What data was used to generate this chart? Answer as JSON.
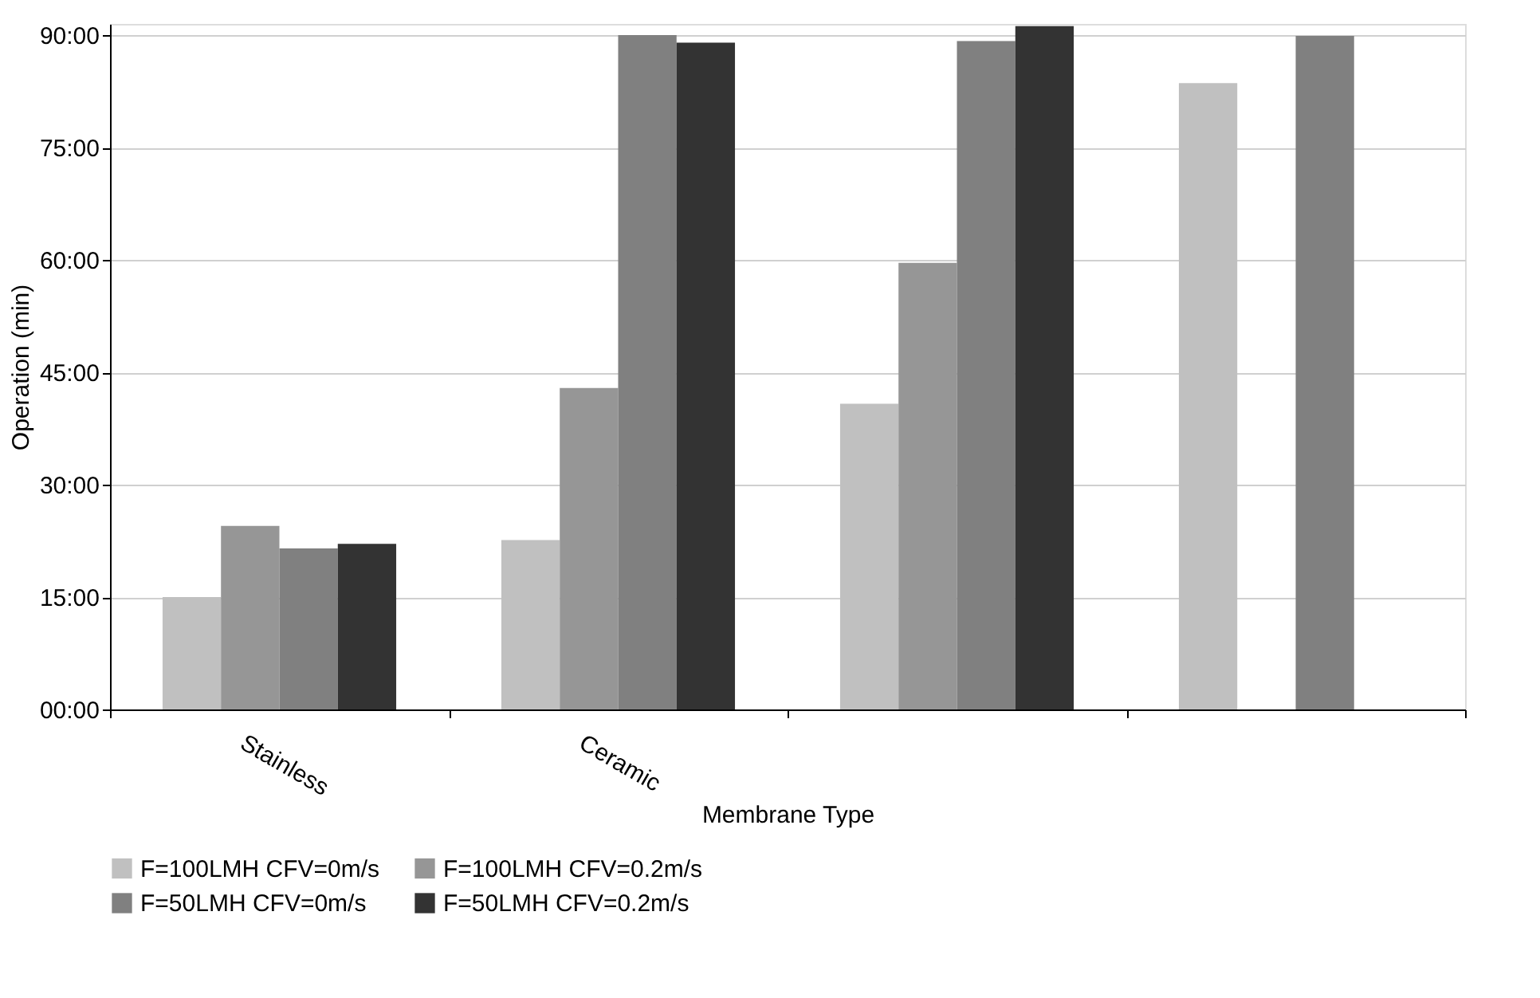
{
  "chart_data": {
    "type": "bar",
    "xlabel": "Membrane Type",
    "ylabel": "Operation (min)",
    "categories": [
      "Stainless",
      "Ceramic",
      null,
      null
    ],
    "series": [
      {
        "name": "F=100LMH CFV=0m/s",
        "color": "#c0c0c0",
        "values": [
          15.0,
          22.6,
          40.8,
          83.6
        ]
      },
      {
        "name": "F=100LMH CFV=0.2m/s",
        "color": "#969696",
        "values": [
          24.5,
          42.9,
          59.6,
          null
        ]
      },
      {
        "name": "F=50LMH CFV=0m/s",
        "color": "#808080",
        "values": [
          21.5,
          90.0,
          89.2,
          89.9
        ]
      },
      {
        "name": "F=50LMH CFV=0.2m/s",
        "color": "#333333",
        "values": [
          22.1,
          89.0,
          91.2,
          null
        ]
      }
    ],
    "ylim": [
      0,
      91.5
    ],
    "yticks": [
      {
        "value": 0,
        "label": "00:00"
      },
      {
        "value": 15,
        "label": "15:00"
      },
      {
        "value": 30,
        "label": "30:00"
      },
      {
        "value": 45,
        "label": "45:00"
      },
      {
        "value": 60,
        "label": "60:00"
      },
      {
        "value": 75,
        "label": "75:00"
      },
      {
        "value": 90,
        "label": "90:00"
      }
    ],
    "grid": "y",
    "legend": "bottom"
  }
}
